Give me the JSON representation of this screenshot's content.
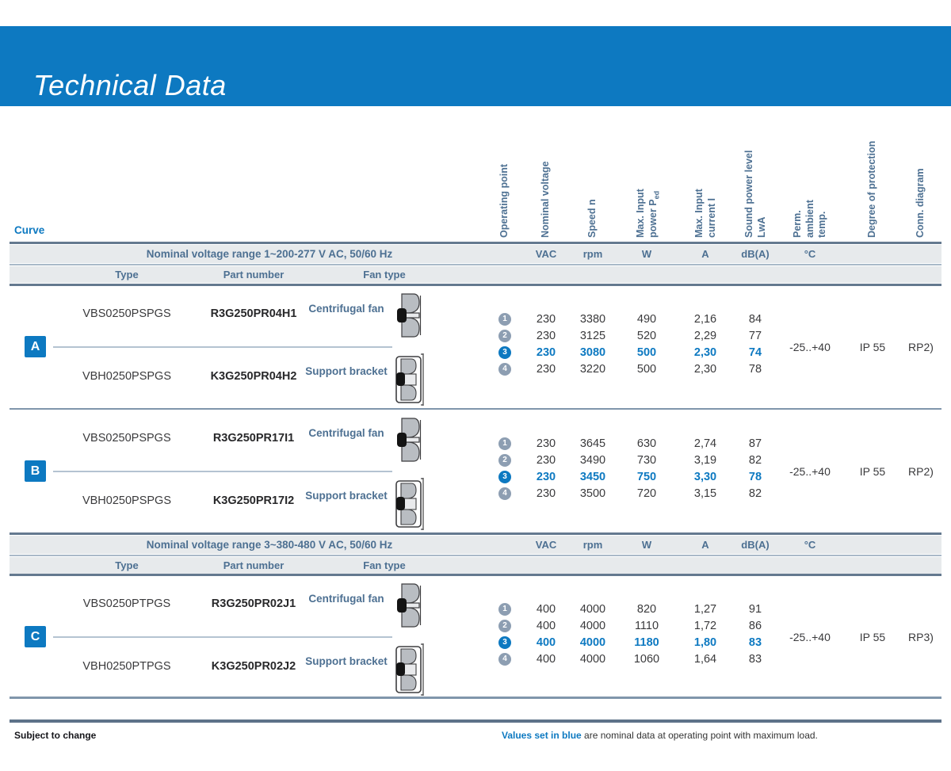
{
  "title": "Technical Data",
  "curve_label": "Curve",
  "colors": {
    "accent": "#0d79c1",
    "header_text": "#4d7092",
    "highlight_values": "#0d79c1",
    "band_background": "#e7eaec"
  },
  "columns": [
    {
      "key": "badge",
      "lines": [
        "Operating point"
      ]
    },
    {
      "key": "vac",
      "lines": [
        "Nominal voltage"
      ]
    },
    {
      "key": "rpm",
      "lines": [
        "Speed n"
      ]
    },
    {
      "key": "w",
      "lines": [
        "Max. Input",
        "power P_ed_"
      ]
    },
    {
      "key": "a",
      "lines": [
        "Max. Input",
        "current I"
      ]
    },
    {
      "key": "dba",
      "lines": [
        "Sound power level",
        "LwA"
      ]
    },
    {
      "key": "temp",
      "lines": [
        "Perm.",
        "ambient",
        "temp."
      ]
    },
    {
      "key": "ip",
      "lines": [
        "Degree of protection"
      ]
    },
    {
      "key": "conn",
      "lines": [
        "Conn. diagram"
      ]
    }
  ],
  "units": [
    {
      "key": "vac",
      "text": "VAC"
    },
    {
      "key": "rpm",
      "text": "rpm"
    },
    {
      "key": "w",
      "text": "W"
    },
    {
      "key": "a",
      "text": "A"
    },
    {
      "key": "dba",
      "text": "dB(A)"
    },
    {
      "key": "temp",
      "text": "°C"
    }
  ],
  "sections": [
    {
      "band": "Nominal voltage range 1~200-277 V AC, 50/60 Hz",
      "subheaders": [
        "Type",
        "Part number",
        "Fan type"
      ],
      "groups": [
        {
          "curve": "A",
          "products": [
            {
              "type": "VBS0250PSPGS",
              "part": "R3G250PR04H1",
              "fan_type": "Centrifugal fan",
              "icon": "centrifugal-fan-icon"
            },
            {
              "type": "VBH0250PSPGS",
              "part": "K3G250PR04H2",
              "fan_type": "Support bracket",
              "icon": "support-bracket-icon"
            }
          ],
          "rows": [
            {
              "point": "1",
              "vac": "230",
              "rpm": "3380",
              "w": "490",
              "a": "2,16",
              "dba": "84",
              "highlight": false
            },
            {
              "point": "2",
              "vac": "230",
              "rpm": "3125",
              "w": "520",
              "a": "2,29",
              "dba": "77",
              "highlight": false
            },
            {
              "point": "3",
              "vac": "230",
              "rpm": "3080",
              "w": "500",
              "a": "2,30",
              "dba": "74",
              "highlight": true
            },
            {
              "point": "4",
              "vac": "230",
              "rpm": "3220",
              "w": "500",
              "a": "2,30",
              "dba": "78",
              "highlight": false
            }
          ],
          "perm_ambient_temp": "-25..+40",
          "degree_of_protection": "IP 55",
          "conn_diagram": "RP2)"
        },
        {
          "curve": "B",
          "products": [
            {
              "type": "VBS0250PSPGS",
              "part": "R3G250PR17I1",
              "fan_type": "Centrifugal fan",
              "icon": "centrifugal-fan-icon"
            },
            {
              "type": "VBH0250PSPGS",
              "part": "K3G250PR17I2",
              "fan_type": "Support bracket",
              "icon": "support-bracket-icon"
            }
          ],
          "rows": [
            {
              "point": "1",
              "vac": "230",
              "rpm": "3645",
              "w": "630",
              "a": "2,74",
              "dba": "87",
              "highlight": false
            },
            {
              "point": "2",
              "vac": "230",
              "rpm": "3490",
              "w": "730",
              "a": "3,19",
              "dba": "82",
              "highlight": false
            },
            {
              "point": "3",
              "vac": "230",
              "rpm": "3450",
              "w": "750",
              "a": "3,30",
              "dba": "78",
              "highlight": true
            },
            {
              "point": "4",
              "vac": "230",
              "rpm": "3500",
              "w": "720",
              "a": "3,15",
              "dba": "82",
              "highlight": false
            }
          ],
          "perm_ambient_temp": "-25..+40",
          "degree_of_protection": "IP 55",
          "conn_diagram": "RP2)"
        }
      ]
    },
    {
      "band": "Nominal voltage range 3~380-480 V AC, 50/60 Hz",
      "subheaders": [
        "Type",
        "Part number",
        "Fan type"
      ],
      "groups": [
        {
          "curve": "C",
          "products": [
            {
              "type": "VBS0250PTPGS",
              "part": "R3G250PR02J1",
              "fan_type": "Centrifugal fan",
              "icon": "centrifugal-fan-icon"
            },
            {
              "type": "VBH0250PTPGS",
              "part": "K3G250PR02J2",
              "fan_type": "Support bracket",
              "icon": "support-bracket-icon"
            }
          ],
          "rows": [
            {
              "point": "1",
              "vac": "400",
              "rpm": "4000",
              "w": "820",
              "a": "1,27",
              "dba": "91",
              "highlight": false
            },
            {
              "point": "2",
              "vac": "400",
              "rpm": "4000",
              "w": "1110",
              "a": "1,72",
              "dba": "86",
              "highlight": false
            },
            {
              "point": "3",
              "vac": "400",
              "rpm": "4000",
              "w": "1180",
              "a": "1,80",
              "dba": "83",
              "highlight": true
            },
            {
              "point": "4",
              "vac": "400",
              "rpm": "4000",
              "w": "1060",
              "a": "1,64",
              "dba": "83",
              "highlight": false
            }
          ],
          "perm_ambient_temp": "-25..+40",
          "degree_of_protection": "IP 55",
          "conn_diagram": "RP3)"
        }
      ]
    }
  ],
  "footer": {
    "left": "Subject to change",
    "blue": "Values set in blue",
    "rest": " are nominal data at operating point with maximum load."
  }
}
